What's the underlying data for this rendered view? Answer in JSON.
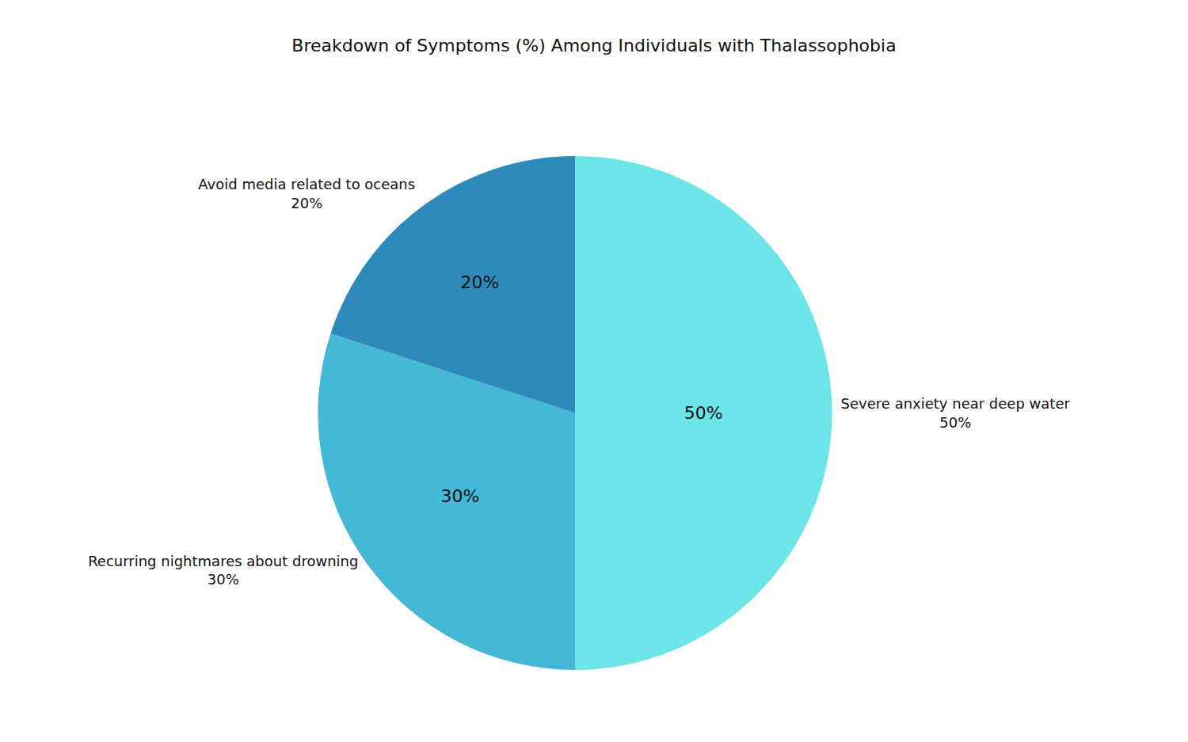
{
  "chart_data": {
    "type": "pie",
    "title": "Breakdown of Symptoms (%) Among Individuals with Thalassophobia",
    "categories": [
      "Severe anxiety near deep water",
      "Recurring nightmares about drowning",
      "Avoid media related to oceans"
    ],
    "values": [
      50,
      30,
      20
    ],
    "value_labels": [
      "50%",
      "30%",
      "20%"
    ],
    "colors": [
      "#6be5e8",
      "#43b8d7",
      "#2e8bb9"
    ],
    "data_labels": true
  }
}
